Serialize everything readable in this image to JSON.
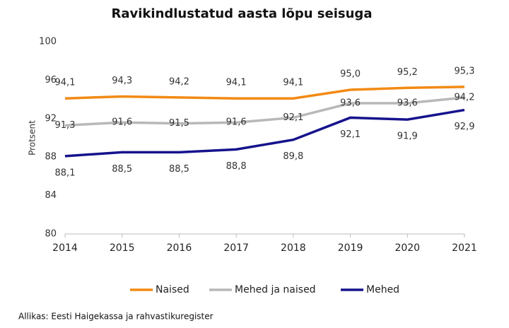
{
  "chart_data": {
    "type": "line",
    "title": "Ravikindlustatud aasta lõpu seisuga",
    "y_label": "Protsent",
    "x": [
      2014,
      2015,
      2016,
      2017,
      2018,
      2019,
      2020,
      2021
    ],
    "xlim": [
      2014,
      2021
    ],
    "xticks": [
      2014,
      2015,
      2016,
      2017,
      2018,
      2019,
      2020,
      2021
    ],
    "ylim": [
      80,
      100
    ],
    "yticks": [
      80,
      84,
      88,
      92,
      96,
      100
    ],
    "grid": false,
    "legend": "bottom",
    "series": [
      {
        "name": "Naised",
        "color": "#f28a14",
        "values": [
          94.1,
          94.3,
          94.2,
          94.1,
          94.1,
          95.0,
          95.2,
          95.3
        ],
        "value_labels": [
          "94,1",
          "94,3",
          "94,2",
          "94,1",
          "94,1",
          "95,0",
          "95,2",
          "95,3"
        ]
      },
      {
        "name": "Mehed ja naised",
        "color": "#b8b8b8",
        "values": [
          91.3,
          91.6,
          91.5,
          91.6,
          92.1,
          93.6,
          93.6,
          94.2
        ],
        "value_labels": [
          "91,3",
          "91,6",
          "91,5",
          "91,6",
          "92,1",
          "93,6",
          "93,6",
          "94,2"
        ]
      },
      {
        "name": "Mehed",
        "color": "#16138c",
        "values": [
          88.1,
          88.5,
          88.5,
          88.8,
          89.8,
          92.1,
          91.9,
          92.9
        ],
        "value_labels": [
          "88,1",
          "88,5",
          "88,5",
          "88,8",
          "89,8",
          "92,1",
          "91,9",
          "92,9"
        ]
      }
    ],
    "source": "Allikas: Eesti Haigekassa ja rahvastikuregister"
  }
}
